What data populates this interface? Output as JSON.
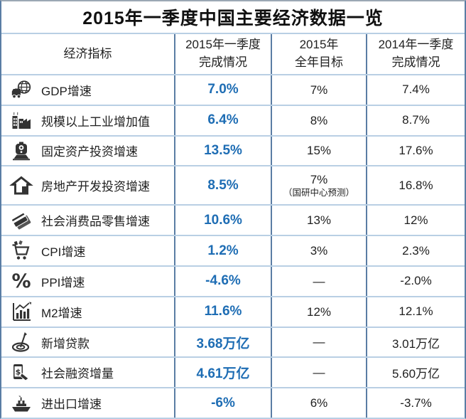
{
  "title": "2015年一季度中国主要经济数据一览",
  "header": {
    "indicator": "经济指标",
    "col_2015_q1": {
      "line1": "2015年一季度",
      "line2": "完成情况"
    },
    "col_2015_target": {
      "line1": "2015年",
      "line2": "全年目标"
    },
    "col_2014_q1": {
      "line1": "2014年一季度",
      "line2": "完成情况"
    }
  },
  "rows": [
    {
      "icon": "truck-globe-icon",
      "indicator": "GDP增速",
      "q1_2015": "7.0%",
      "target_2015": "7%",
      "note": "",
      "q1_2014": "7.4%"
    },
    {
      "icon": "factory-icon",
      "indicator": "规模以上工业增加值",
      "q1_2015": "6.4%",
      "target_2015": "8%",
      "note": "",
      "q1_2014": "8.7%"
    },
    {
      "icon": "train-icon",
      "indicator": "固定资产投资增速",
      "q1_2015": "13.5%",
      "target_2015": "15%",
      "note": "",
      "q1_2014": "17.6%"
    },
    {
      "icon": "house-icon",
      "indicator": "房地产开发投资增速",
      "q1_2015": "8.5%",
      "target_2015": "7%",
      "note": "（国研中心预测）",
      "q1_2014": "16.8%"
    },
    {
      "icon": "credit-cards-icon",
      "indicator": "社会消费品零售增速",
      "q1_2015": "10.6%",
      "target_2015": "13%",
      "note": "",
      "q1_2014": "12%"
    },
    {
      "icon": "shopping-cart-icon",
      "indicator": "CPI增速",
      "q1_2015": "1.2%",
      "target_2015": "3%",
      "note": "",
      "q1_2014": "2.3%"
    },
    {
      "icon": "percent-icon",
      "indicator": "PPI增速",
      "q1_2015": "-4.6%",
      "target_2015": "—",
      "note": "",
      "q1_2014": "-2.0%"
    },
    {
      "icon": "bar-chart-icon",
      "indicator": "M2增速",
      "q1_2015": "11.6%",
      "target_2015": "12%",
      "note": "",
      "q1_2014": "12.1%"
    },
    {
      "icon": "target-dart-icon",
      "indicator": "新增贷款",
      "q1_2015": "3.68万亿",
      "target_2015": "—",
      "note": "",
      "q1_2014": "3.01万亿"
    },
    {
      "icon": "mobile-payment-icon",
      "indicator": "社会融资增量",
      "q1_2015": "4.61万亿",
      "target_2015": "—",
      "note": "",
      "q1_2014": "5.60万亿"
    },
    {
      "icon": "ship-icon",
      "indicator": "进出口增速",
      "q1_2015": "-6%",
      "target_2015": "6%",
      "note": "",
      "q1_2014": "-3.7%"
    }
  ],
  "colors": {
    "value_highlight_blue": "#1e6db4",
    "grid_vertical_blue": "#5a7da4",
    "grid_horizontal_blue": "#b9cfe4",
    "text_dark": "#1f1f1f",
    "icon_dark": "#333333",
    "background": "#ffffff"
  },
  "chart_data": {
    "type": "table",
    "title": "2015年一季度中国主要经济数据一览",
    "columns": [
      "经济指标",
      "2015年一季度完成情况",
      "2015年全年目标",
      "2014年一季度完成情况"
    ],
    "rows": [
      [
        "GDP增速",
        "7.0%",
        "7%",
        "7.4%"
      ],
      [
        "规模以上工业增加值",
        "6.4%",
        "8%",
        "8.7%"
      ],
      [
        "固定资产投资增速",
        "13.5%",
        "15%",
        "17.6%"
      ],
      [
        "房地产开发投资增速",
        "8.5%",
        "7%（国研中心预测）",
        "16.8%"
      ],
      [
        "社会消费品零售增速",
        "10.6%",
        "13%",
        "12%"
      ],
      [
        "CPI增速",
        "1.2%",
        "3%",
        "2.3%"
      ],
      [
        "PPI增速",
        "-4.6%",
        "—",
        "-2.0%"
      ],
      [
        "M2增速",
        "11.6%",
        "12%",
        "12.1%"
      ],
      [
        "新增贷款",
        "3.68万亿",
        "—",
        "3.01万亿"
      ],
      [
        "社会融资增量",
        "4.61万亿",
        "—",
        "5.60万亿"
      ],
      [
        "进出口增速",
        "-6%",
        "6%",
        "-3.7%"
      ]
    ]
  }
}
